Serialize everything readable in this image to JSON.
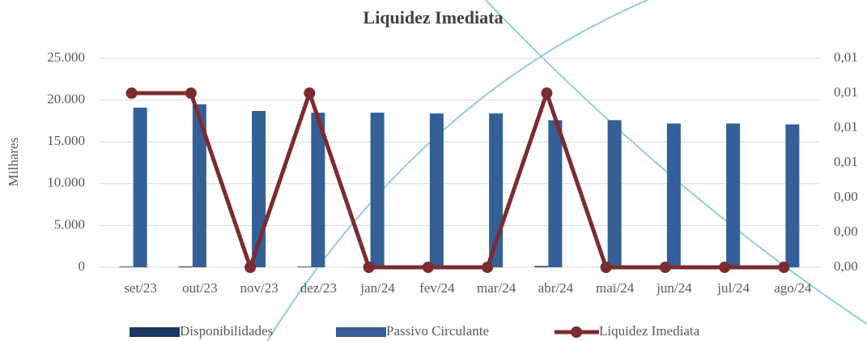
{
  "chart_data": {
    "type": "bar",
    "title": "Liquidez Imediata",
    "y_label": "Milhares",
    "categories": [
      "set/23",
      "out/23",
      "nov/23",
      "dez/23",
      "jan/24",
      "fev/24",
      "mar/24",
      "abr/24",
      "mai/24",
      "jun/24",
      "jul/24",
      "ago/24"
    ],
    "series": [
      {
        "name": "Disponibilidades",
        "type": "bar",
        "color": "#1f3864",
        "values": [
          80,
          100,
          10,
          80,
          10,
          10,
          10,
          150,
          10,
          10,
          10,
          10
        ]
      },
      {
        "name": "Passivo Circulante",
        "type": "bar",
        "color": "#345f97",
        "values": [
          19100,
          19500,
          18700,
          18500,
          18500,
          18400,
          18400,
          17600,
          17600,
          17200,
          17200,
          17100
        ]
      },
      {
        "name": "Liquidez Imediata",
        "type": "line",
        "axis": "y2",
        "color": "#7b2c2f",
        "values": [
          0.01,
          0.01,
          0,
          0.01,
          0,
          0,
          0,
          0.01,
          0,
          0,
          0,
          0
        ]
      }
    ],
    "ylim": [
      0,
      25000
    ],
    "yticks": [
      0,
      {
        "value": 5000,
        "label": "5.000"
      },
      {
        "value": 10000,
        "label": "10.000"
      },
      {
        "value": 15000,
        "label": "15.000"
      },
      {
        "value": 20000,
        "label": "20.000"
      },
      {
        "value": 25000,
        "label": "25.000"
      }
    ],
    "y2lim": [
      0,
      0.012
    ],
    "y2ticks": [
      {
        "value": 0,
        "label": "0,00"
      },
      {
        "value": 0.002,
        "label": "0,00"
      },
      {
        "value": 0.004,
        "label": "0,00"
      },
      {
        "value": 0.006,
        "label": "0,01"
      },
      {
        "value": 0.008,
        "label": "0,01"
      },
      {
        "value": 0.01,
        "label": "0,01"
      },
      {
        "value": 0.012,
        "label": "0,01"
      }
    ],
    "grid": true,
    "legend": "bottom"
  }
}
